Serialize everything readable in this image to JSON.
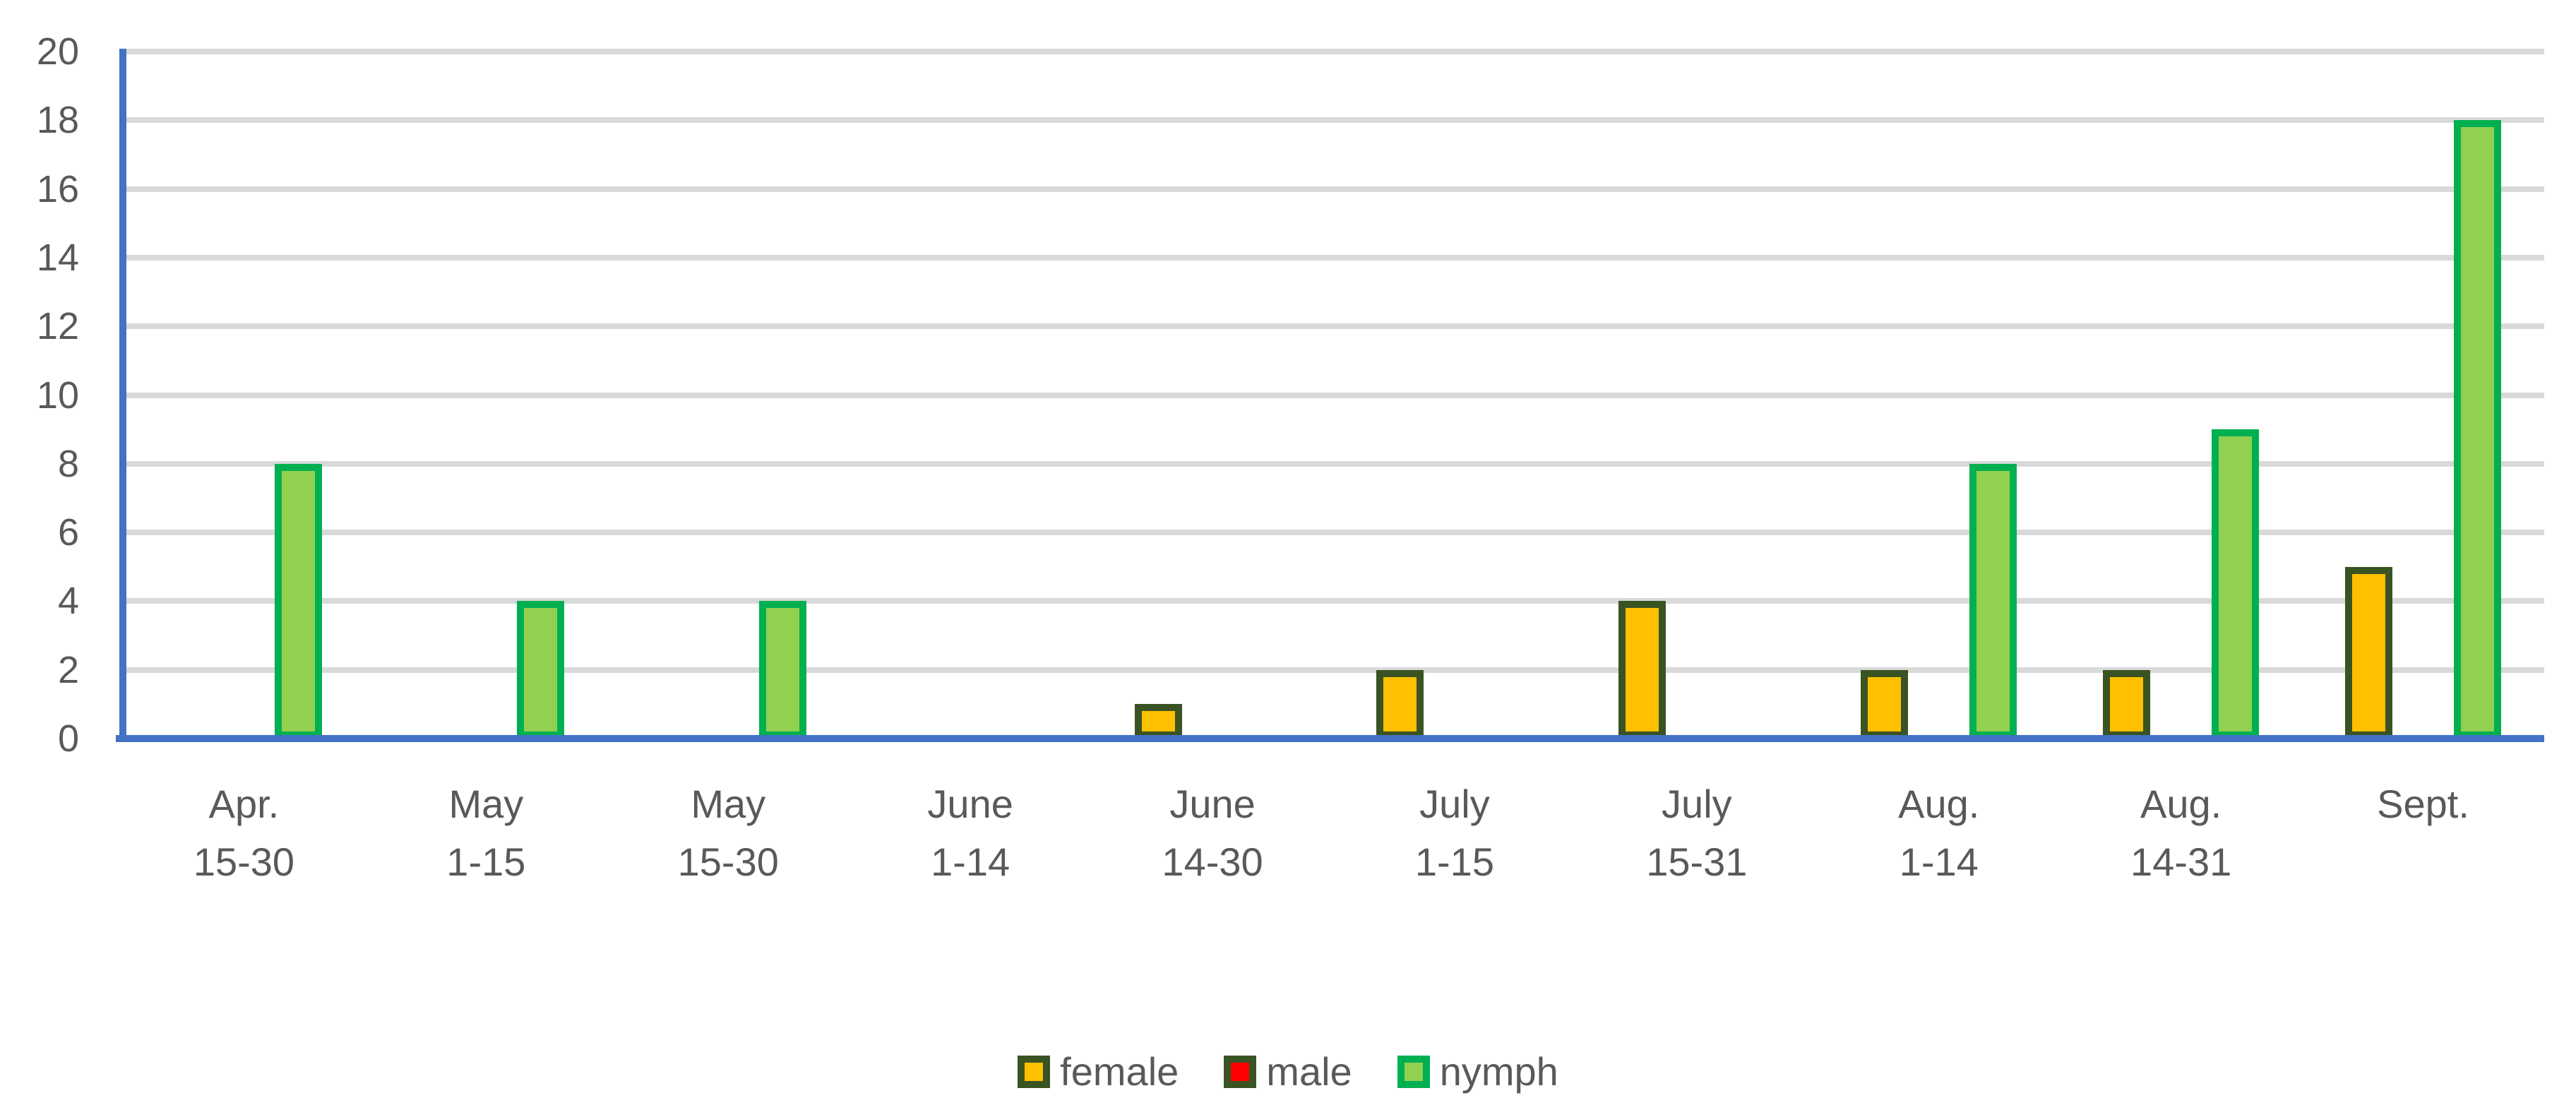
{
  "chart_data": {
    "type": "bar",
    "title": "",
    "xlabel": "",
    "ylabel": "",
    "categories": [
      "Apr. 15-30",
      "May 1-15",
      "May 15-30",
      "June 1-14",
      "June 14-30",
      "July 1-15",
      "July 15-31",
      "Aug. 1-14",
      "Aug. 14-31",
      "Sept."
    ],
    "category_label_lines": [
      [
        "Apr.",
        "15-30"
      ],
      [
        "May",
        "1-15"
      ],
      [
        "May",
        "15-30"
      ],
      [
        "June",
        "1-14"
      ],
      [
        "June",
        "14-30"
      ],
      [
        "July",
        "1-15"
      ],
      [
        "July",
        "15-31"
      ],
      [
        "Aug.",
        "1-14"
      ],
      [
        "Aug.",
        "14-31"
      ],
      [
        "Sept."
      ]
    ],
    "series": [
      {
        "name": "female",
        "fill": "#FFC000",
        "border": "#3A5323",
        "values": [
          0,
          0,
          0,
          0,
          1,
          2,
          4,
          2,
          2,
          5
        ]
      },
      {
        "name": "male",
        "fill": "#FF0000",
        "border": "#3A5323",
        "values": [
          0,
          0,
          0,
          0,
          0,
          0,
          0,
          0,
          0,
          0
        ]
      },
      {
        "name": "nymph",
        "fill": "#92D050",
        "border": "#00B050",
        "values": [
          8,
          4,
          4,
          0,
          0,
          0,
          0,
          8,
          9,
          18
        ]
      }
    ],
    "ylim": [
      0,
      20
    ],
    "ytick_step": 2,
    "ytick_labels": [
      "0",
      "2",
      "4",
      "6",
      "8",
      "10",
      "12",
      "14",
      "16",
      "18",
      "20"
    ],
    "grid": true,
    "legend_position": "bottom",
    "style": {
      "axis_color": "#4472C4",
      "gridline_color": "#D9D9D9",
      "text_color": "#595959",
      "background": "#FFFFFF"
    }
  }
}
